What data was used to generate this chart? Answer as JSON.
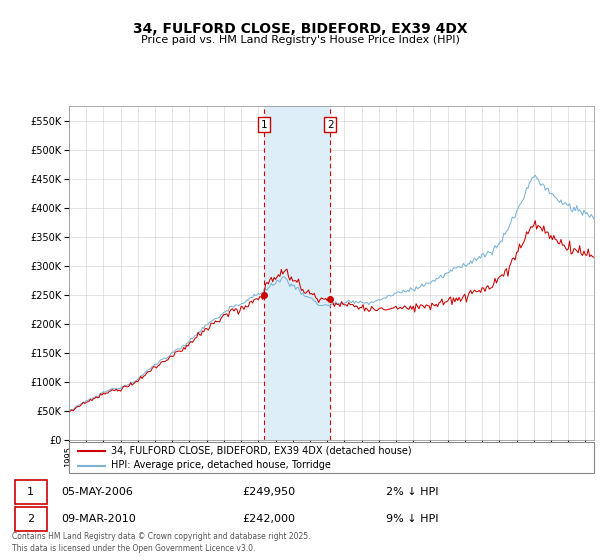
{
  "title": "34, FULFORD CLOSE, BIDEFORD, EX39 4DX",
  "subtitle": "Price paid vs. HM Land Registry's House Price Index (HPI)",
  "hpi_color": "#7ab4d8",
  "price_color": "#cc0000",
  "shading_color": "#ddeef8",
  "legend_label1": "34, FULFORD CLOSE, BIDEFORD, EX39 4DX (detached house)",
  "legend_label2": "HPI: Average price, detached house, Torridge",
  "marker1_date_str": "05-MAY-2006",
  "marker1_price": 249950,
  "marker1_pct": "2% ↓ HPI",
  "marker2_date_str": "09-MAR-2010",
  "marker2_price": 242000,
  "marker2_pct": "9% ↓ HPI",
  "footer": "Contains HM Land Registry data © Crown copyright and database right 2025.\nThis data is licensed under the Open Government Licence v3.0.",
  "ylim": [
    0,
    575000
  ],
  "yticks": [
    0,
    50000,
    100000,
    150000,
    200000,
    250000,
    300000,
    350000,
    400000,
    450000,
    500000,
    550000
  ]
}
